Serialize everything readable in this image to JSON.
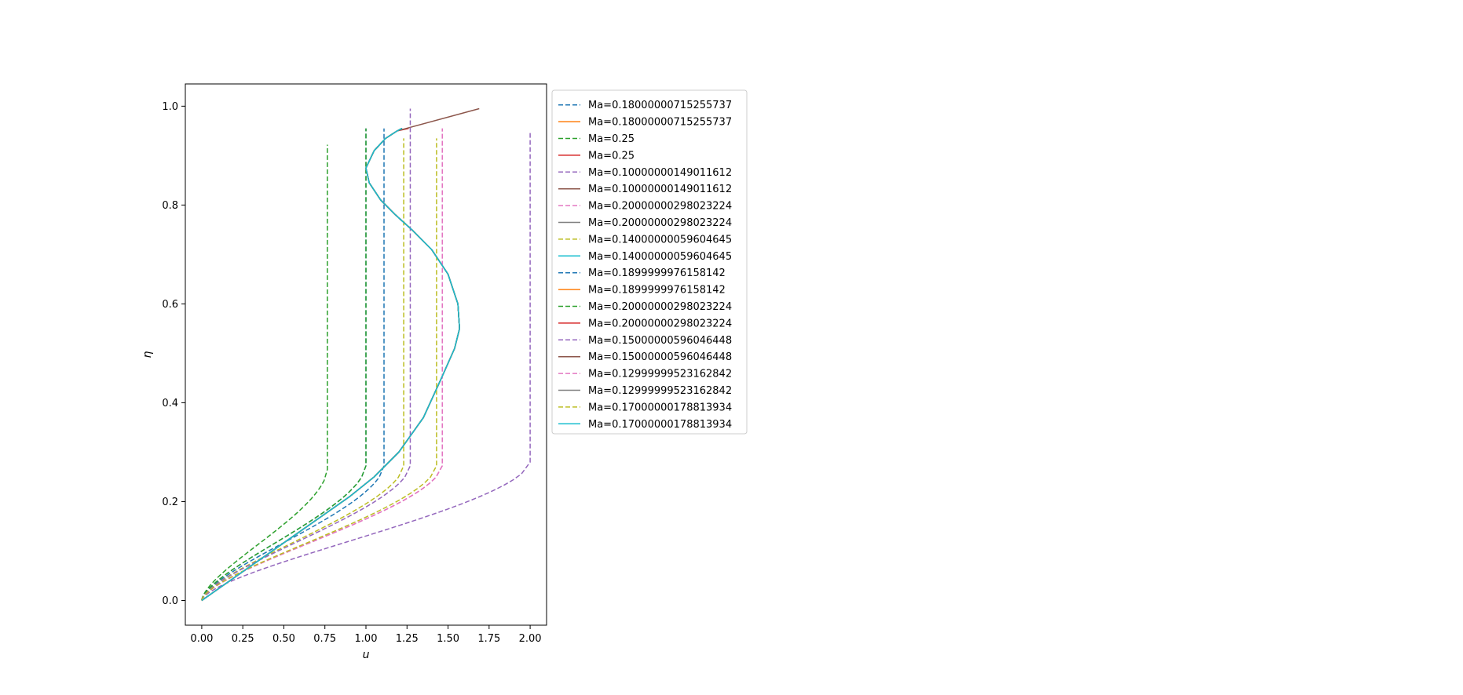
{
  "chart_data": {
    "type": "line",
    "title": "",
    "xlabel": "u",
    "ylabel": "η",
    "xlim": [
      -0.1,
      2.1
    ],
    "ylim": [
      -0.05,
      1.045
    ],
    "xticks": [
      0.0,
      0.25,
      0.5,
      0.75,
      1.0,
      1.25,
      1.5,
      1.75,
      2.0
    ],
    "xtick_labels": [
      "0.00",
      "0.25",
      "0.50",
      "0.75",
      "1.00",
      "1.25",
      "1.50",
      "1.75",
      "2.00"
    ],
    "yticks": [
      0.0,
      0.2,
      0.4,
      0.6,
      0.8,
      1.0
    ],
    "ytick_labels": [
      "0.0",
      "0.2",
      "0.4",
      "0.6",
      "0.8",
      "1.0"
    ],
    "grid": false,
    "legend_placement": "outside upper right of axes",
    "series": [
      {
        "name": "Ma=0.18000000715255737",
        "style": "dashed",
        "color": "#1f77b4",
        "kind": "profile",
        "ue": 1.11,
        "top": 0.955
      },
      {
        "name": "Ma=0.18000000715255737",
        "style": "solid",
        "color": "#ff7f0e",
        "kind": "s-curve",
        "tip": [
          1.22,
          0.955
        ]
      },
      {
        "name": "Ma=0.25",
        "style": "dashed",
        "color": "#2ca02c",
        "kind": "profile",
        "ue": 0.765,
        "top": 0.922
      },
      {
        "name": "Ma=0.25",
        "style": "solid",
        "color": "#d62728",
        "kind": "s-curve",
        "tip": [
          1.26,
          0.955
        ]
      },
      {
        "name": "Ma=0.10000000149011612",
        "style": "dashed",
        "color": "#9467bd",
        "kind": "profile",
        "ue": 2.0,
        "top": 0.95
      },
      {
        "name": "Ma=0.10000000149011612",
        "style": "solid",
        "color": "#8c564b",
        "kind": "s-curve",
        "tip": [
          1.69,
          0.995
        ]
      },
      {
        "name": "Ma=0.20000000298023224",
        "style": "dashed",
        "color": "#e377c2",
        "kind": "profile",
        "ue": 1.465,
        "top": 0.955
      },
      {
        "name": "Ma=0.20000000298023224",
        "style": "solid",
        "color": "#7f7f7f",
        "kind": "s-curve",
        "tip": [
          1.22,
          0.955
        ]
      },
      {
        "name": "Ma=0.14000000059604645",
        "style": "dashed",
        "color": "#bcbd22",
        "kind": "profile",
        "ue": 1.23,
        "top": 0.935
      },
      {
        "name": "Ma=0.14000000059604645",
        "style": "solid",
        "color": "#17becf",
        "kind": "s-curve",
        "tip": [
          1.22,
          0.955
        ]
      },
      {
        "name": "Ma=0.1899999976158142",
        "style": "dashed",
        "color": "#1f77b4",
        "kind": "profile",
        "ue": 1.0,
        "top": 0.955
      },
      {
        "name": "Ma=0.1899999976158142",
        "style": "solid",
        "color": "#ff7f0e",
        "kind": "s-curve",
        "tip": [
          1.22,
          0.955
        ]
      },
      {
        "name": "Ma=0.20000000298023224",
        "style": "dashed",
        "color": "#2ca02c",
        "kind": "profile",
        "ue": 1.0,
        "top": 0.955
      },
      {
        "name": "Ma=0.20000000298023224",
        "style": "solid",
        "color": "#d62728",
        "kind": "s-curve",
        "tip": [
          1.22,
          0.955
        ]
      },
      {
        "name": "Ma=0.15000000596046448",
        "style": "dashed",
        "color": "#9467bd",
        "kind": "profile",
        "ue": 1.27,
        "top": 0.995
      },
      {
        "name": "Ma=0.15000000596046448",
        "style": "solid",
        "color": "#8c564b",
        "kind": "s-curve",
        "tip": [
          1.22,
          0.955
        ]
      },
      {
        "name": "Ma=0.12999999523162842",
        "style": "dashed",
        "color": "#e377c2",
        "kind": "profile",
        "ue": 1.465,
        "top": 0.955
      },
      {
        "name": "Ma=0.12999999523162842",
        "style": "solid",
        "color": "#7f7f7f",
        "kind": "s-curve",
        "tip": [
          1.22,
          0.955
        ]
      },
      {
        "name": "Ma=0.17000000178813934",
        "style": "dashed",
        "color": "#bcbd22",
        "kind": "profile",
        "ue": 1.43,
        "top": 0.935
      },
      {
        "name": "Ma=0.17000000178813934",
        "style": "solid",
        "color": "#17becf",
        "kind": "s-curve",
        "tip": [
          1.22,
          0.955
        ]
      }
    ],
    "s_curve_points": [
      [
        0.0,
        0.0
      ],
      [
        0.3,
        0.07
      ],
      [
        0.6,
        0.14
      ],
      [
        0.9,
        0.21
      ],
      [
        1.05,
        0.25
      ],
      [
        1.2,
        0.3
      ],
      [
        1.35,
        0.37
      ],
      [
        1.46,
        0.45
      ],
      [
        1.54,
        0.51
      ],
      [
        1.57,
        0.55
      ],
      [
        1.56,
        0.6
      ],
      [
        1.5,
        0.66
      ],
      [
        1.4,
        0.71
      ],
      [
        1.28,
        0.75
      ],
      [
        1.18,
        0.78
      ],
      [
        1.09,
        0.81
      ],
      [
        1.02,
        0.845
      ],
      [
        1.0,
        0.875
      ],
      [
        1.05,
        0.91
      ],
      [
        1.12,
        0.935
      ],
      [
        1.19,
        0.95
      ]
    ]
  }
}
